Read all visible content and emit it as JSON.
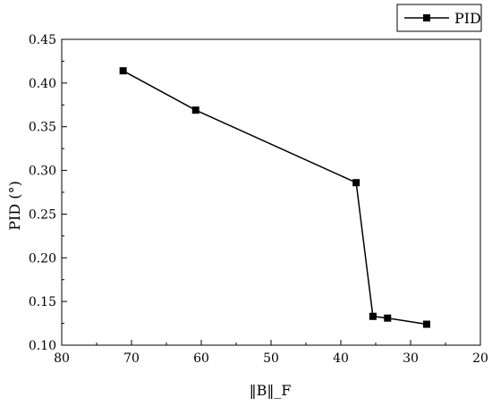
{
  "chart_data": {
    "type": "line",
    "title": "",
    "xlabel": "‖B‖_F",
    "ylabel": "PID (°)",
    "xlim": [
      80,
      20
    ],
    "ylim": [
      0.1,
      0.45
    ],
    "x_reversed": true,
    "x_ticks": [
      "80",
      "70",
      "60",
      "50",
      "40",
      "30",
      "20"
    ],
    "y_ticks": [
      "0.10",
      "0.15",
      "0.20",
      "0.25",
      "0.30",
      "0.35",
      "0.40",
      "0.45"
    ],
    "grid": false,
    "legend_position": "top-right",
    "series": [
      {
        "name": "PID",
        "color": "#000000",
        "marker": "square",
        "x": [
          71.2,
          60.8,
          37.8,
          35.4,
          33.3,
          27.7
        ],
        "y": [
          0.414,
          0.369,
          0.286,
          0.133,
          0.131,
          0.124
        ]
      }
    ]
  }
}
